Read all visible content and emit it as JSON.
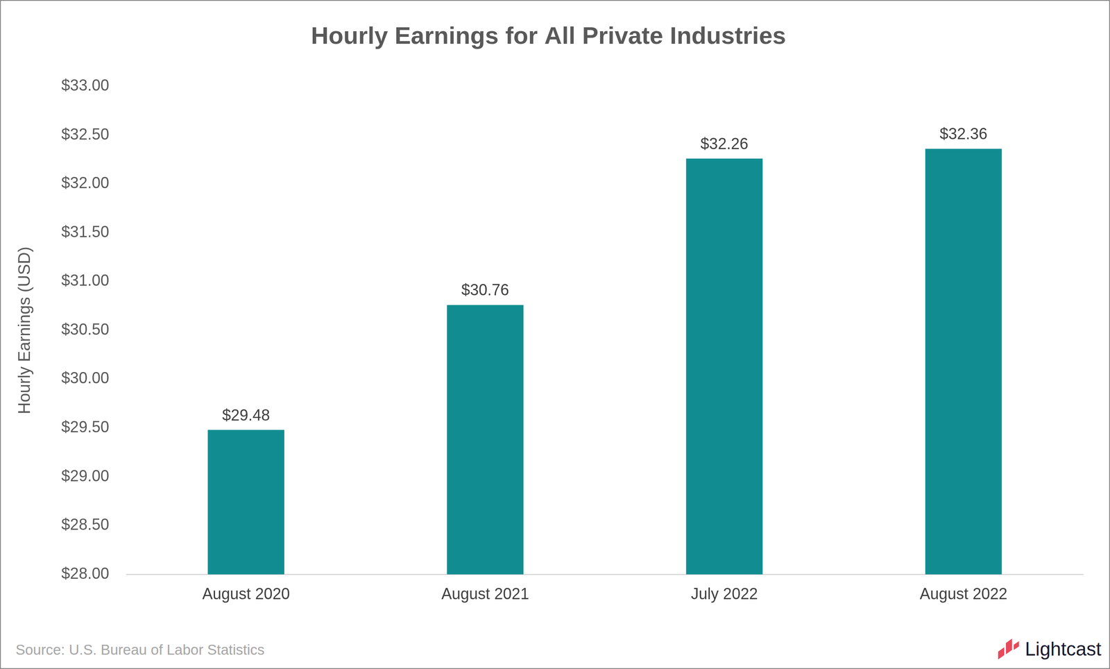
{
  "chart_data": {
    "type": "bar",
    "title": "Hourly Earnings for All Private Industries",
    "y_label": "Hourly Earnings (USD)",
    "categories": [
      "August 2020",
      "August 2021",
      "July 2022",
      "August 2022"
    ],
    "values": [
      29.48,
      30.76,
      32.26,
      32.36
    ],
    "value_labels": [
      "$29.48",
      "$30.76",
      "$32.26",
      "$32.36"
    ],
    "color": "#118d92",
    "ylim": [
      28,
      33
    ],
    "yticks": [
      {
        "value": 28,
        "label": "$28.00"
      },
      {
        "value": 28.5,
        "label": "$28.50"
      },
      {
        "value": 29,
        "label": "$29.00"
      },
      {
        "value": 29.5,
        "label": "$29.50"
      },
      {
        "value": 30,
        "label": "$30.00"
      },
      {
        "value": 30.5,
        "label": "$30.50"
      },
      {
        "value": 31,
        "label": "$31.00"
      },
      {
        "value": 31.5,
        "label": "$31.50"
      },
      {
        "value": 32,
        "label": "$32.00"
      },
      {
        "value": 32.5,
        "label": "$32.50"
      },
      {
        "value": 33,
        "label": "$33.00"
      }
    ],
    "grid": false,
    "data_labels": true,
    "source": "Source:  U.S. Bureau of Labor Statistics",
    "brand": "Lightcast"
  }
}
